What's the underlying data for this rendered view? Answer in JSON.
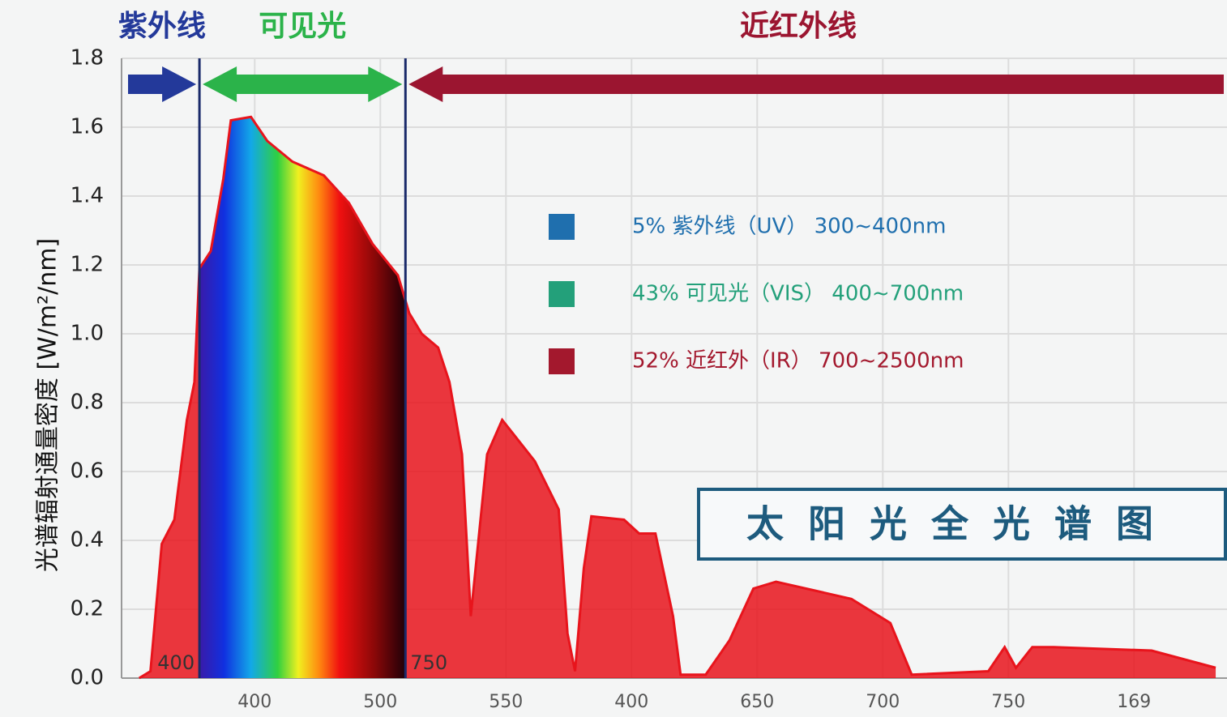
{
  "chart_data": {
    "type": "line",
    "title": "太阳光全光谱图",
    "ylabel": "光谱辐射通量密度 [W/m²/nm]",
    "xlim": [
      -1.06,
      7.74
    ],
    "ylim": [
      0,
      1.8
    ],
    "yticks": [
      {
        "value": 0,
        "label": "0.0"
      },
      {
        "value": 0.2,
        "label": "0.2"
      },
      {
        "value": 0.4,
        "label": "0.4"
      },
      {
        "value": 0.6,
        "label": "0.6"
      },
      {
        "value": 0.8,
        "label": "0.8"
      },
      {
        "value": 1.0,
        "label": "1.0"
      },
      {
        "value": 1.2,
        "label": "1.2"
      },
      {
        "value": 1.4,
        "label": "1.4"
      },
      {
        "value": 1.6,
        "label": "1.6"
      },
      {
        "value": 1.8,
        "label": "1.8"
      }
    ],
    "xticks": [
      {
        "value": 0,
        "label": "400"
      },
      {
        "value": 1,
        "label": "500"
      },
      {
        "value": 2,
        "label": "550"
      },
      {
        "value": 3,
        "label": "400"
      },
      {
        "value": 4,
        "label": "650"
      },
      {
        "value": 5,
        "label": "700"
      },
      {
        "value": 6,
        "label": "750"
      },
      {
        "value": 7,
        "label": "169"
      }
    ],
    "grid": true,
    "boundaries": [
      {
        "value": -0.44,
        "label": "400"
      },
      {
        "value": 1.2,
        "label": "750"
      }
    ],
    "regions": [
      {
        "name": "紫外线",
        "color": "#23399a"
      },
      {
        "name": "可见光",
        "color": "#2bb34a"
      },
      {
        "name": "近红外线",
        "color": "#9b1530"
      }
    ],
    "legend": [
      {
        "label": "5%  紫外线（UV） 300~400nm",
        "color": "#1f6fae"
      },
      {
        "label": "43% 可见光（VIS） 400~700nm",
        "color": "#23a07a"
      },
      {
        "label": "52% 近红外（IR） 700~2500nm",
        "color": "#a3182d"
      }
    ],
    "series": [
      {
        "color": "#e8141c",
        "x": [
          -0.92,
          -0.83,
          -0.74,
          -0.64,
          -0.54,
          -0.48,
          -0.44,
          -0.35,
          -0.25,
          -0.19,
          -0.03,
          0.1,
          0.3,
          0.55,
          0.75,
          0.94,
          1.14,
          1.23,
          1.33,
          1.46,
          1.55,
          1.65,
          1.72,
          1.85,
          1.97,
          2.23,
          2.42,
          2.49,
          2.55,
          2.62,
          2.68,
          2.94,
          3.06,
          3.19,
          3.33,
          3.39,
          3.59,
          3.78,
          3.97,
          4.15,
          4.75,
          5.06,
          5.23,
          5.84,
          5.97,
          6.06,
          6.19,
          6.36,
          7.14,
          7.65
        ],
        "values": [
          0.0,
          0.02,
          0.39,
          0.46,
          0.75,
          0.86,
          1.19,
          1.24,
          1.45,
          1.62,
          1.63,
          1.56,
          1.5,
          1.46,
          1.38,
          1.26,
          1.17,
          1.06,
          1.0,
          0.96,
          0.86,
          0.65,
          0.18,
          0.65,
          0.75,
          0.63,
          0.49,
          0.13,
          0.02,
          0.32,
          0.47,
          0.46,
          0.42,
          0.42,
          0.18,
          0.01,
          0.01,
          0.11,
          0.26,
          0.28,
          0.23,
          0.16,
          0.01,
          0.02,
          0.09,
          0.03,
          0.09,
          0.09,
          0.08,
          0.03
        ]
      }
    ]
  }
}
